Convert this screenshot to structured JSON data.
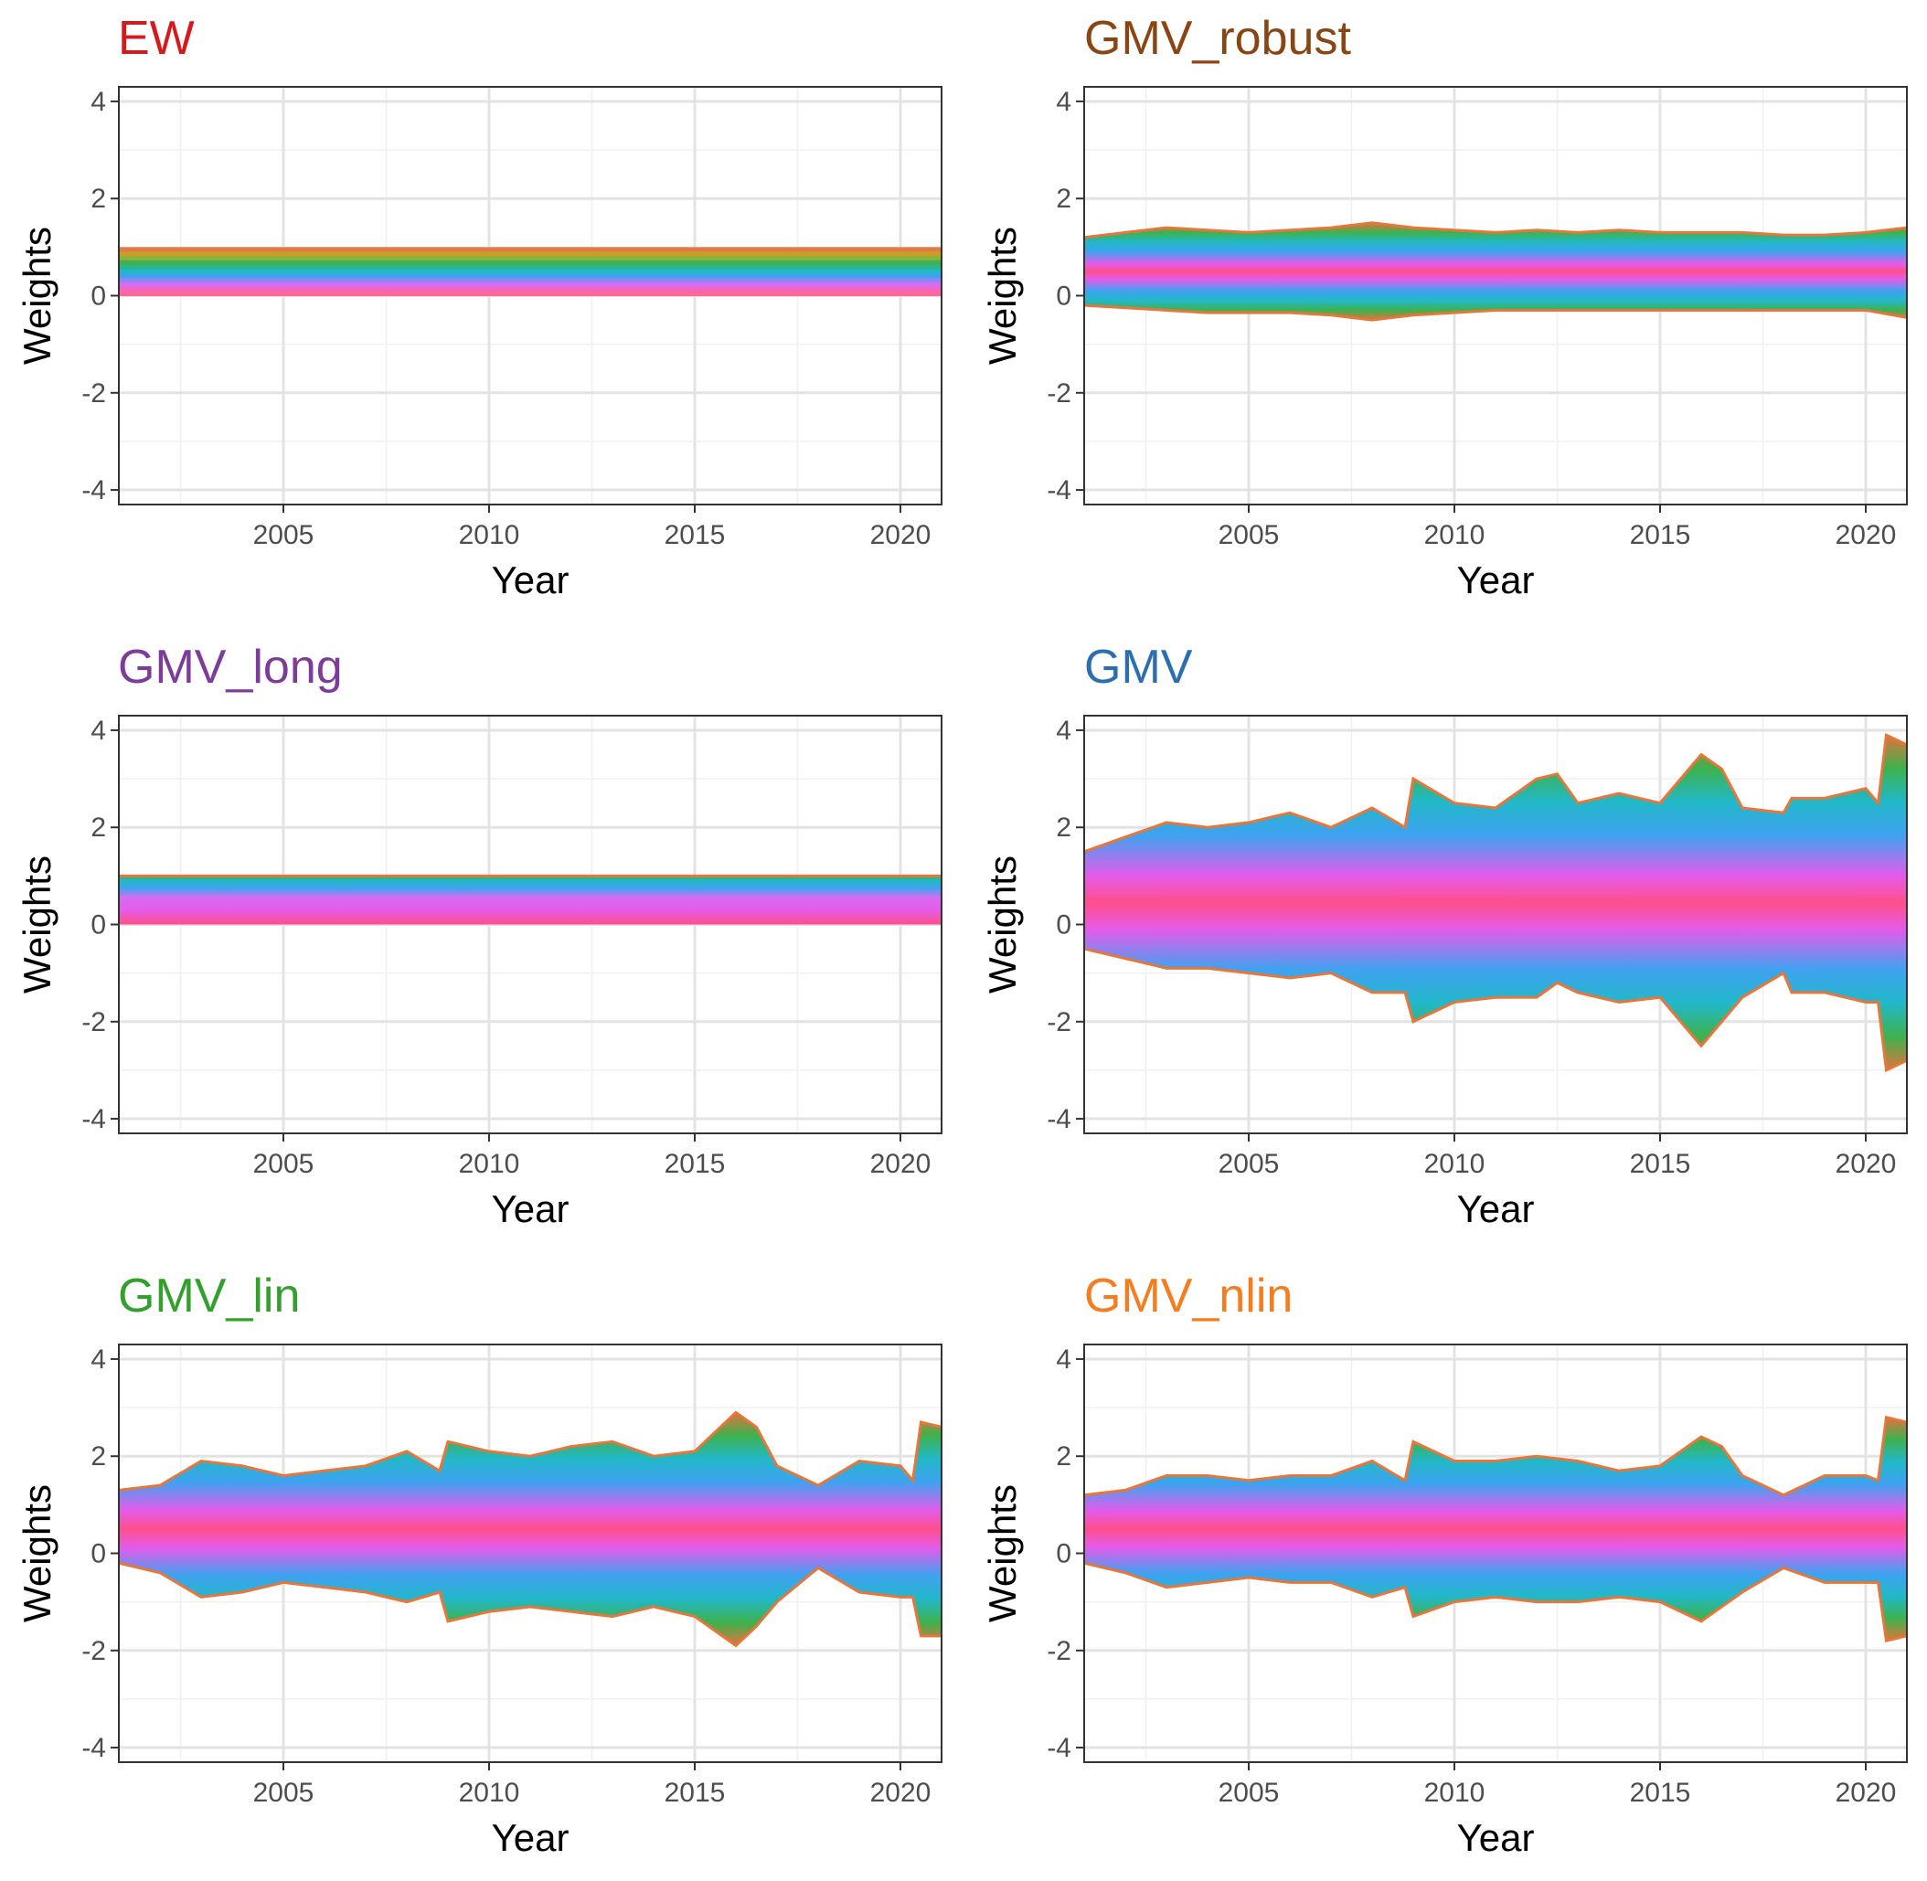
{
  "figure": {
    "background": "#ffffff",
    "panel_border": "#333333",
    "grid_major": "#e3e3e3",
    "grid_minor": "#f0f0f0"
  },
  "chart_data": [
    {
      "type": "area",
      "title": "EW",
      "title_color": "#D7191C",
      "xlabel": "Year",
      "ylabel": "Weights",
      "xlim": [
        2001,
        2021
      ],
      "ylim": [
        -4.3,
        4.3
      ],
      "xticks": [
        2005,
        2010,
        2015,
        2020
      ],
      "yticks": [
        -4,
        -2,
        0,
        2,
        4
      ],
      "grid": true,
      "stacked": true,
      "x": [
        2001,
        2003,
        2005,
        2007,
        2009,
        2011,
        2013,
        2015,
        2017,
        2019,
        2021
      ],
      "upper": [
        1.0,
        1.0,
        1.0,
        1.0,
        1.0,
        1.0,
        1.0,
        1.0,
        1.0,
        1.0,
        1.0
      ],
      "lower": [
        0.0,
        0.0,
        0.0,
        0.0,
        0.0,
        0.0,
        0.0,
        0.0,
        0.0,
        0.0,
        0.0
      ],
      "band_colors": [
        "#E07A4A",
        "#C9A024",
        "#8FB03A",
        "#3DB24E",
        "#2BB58A",
        "#22B8C9",
        "#3FA2F0",
        "#8E86F5",
        "#D66CEF",
        "#F065C6",
        "#FF6699"
      ]
    },
    {
      "type": "area",
      "title": "GMV_robust",
      "title_color": "#8B4513",
      "xlabel": "Year",
      "ylabel": "Weights",
      "xlim": [
        2001,
        2021
      ],
      "ylim": [
        -4.3,
        4.3
      ],
      "xticks": [
        2005,
        2010,
        2015,
        2020
      ],
      "yticks": [
        -4,
        -2,
        0,
        2,
        4
      ],
      "grid": true,
      "stacked": true,
      "x": [
        2001,
        2002,
        2003,
        2004,
        2005,
        2006,
        2007,
        2008,
        2009,
        2010,
        2011,
        2012,
        2013,
        2014,
        2015,
        2016,
        2017,
        2018,
        2019,
        2020,
        2021
      ],
      "upper": [
        1.2,
        1.3,
        1.4,
        1.35,
        1.3,
        1.35,
        1.4,
        1.5,
        1.4,
        1.35,
        1.3,
        1.35,
        1.3,
        1.35,
        1.3,
        1.3,
        1.3,
        1.25,
        1.25,
        1.3,
        1.4
      ],
      "lower": [
        -0.2,
        -0.25,
        -0.3,
        -0.35,
        -0.35,
        -0.35,
        -0.4,
        -0.5,
        -0.4,
        -0.35,
        -0.3,
        -0.3,
        -0.3,
        -0.3,
        -0.3,
        -0.3,
        -0.3,
        -0.3,
        -0.3,
        -0.3,
        -0.45
      ]
    },
    {
      "type": "area",
      "title": "GMV_long",
      "title_color": "#7D3C98",
      "xlabel": "Year",
      "ylabel": "Weights",
      "xlim": [
        2001,
        2021
      ],
      "ylim": [
        -4.3,
        4.3
      ],
      "xticks": [
        2005,
        2010,
        2015,
        2020
      ],
      "yticks": [
        -4,
        -2,
        0,
        2,
        4
      ],
      "grid": true,
      "stacked": true,
      "x": [
        2001,
        2002,
        2003,
        2004,
        2005,
        2006,
        2007,
        2008,
        2009,
        2010,
        2011,
        2012,
        2013,
        2014,
        2015,
        2016,
        2017,
        2018,
        2019,
        2020,
        2021
      ],
      "upper": [
        1.0,
        1.0,
        1.0,
        1.0,
        1.0,
        1.0,
        1.0,
        1.0,
        1.0,
        1.0,
        1.0,
        1.0,
        1.0,
        1.0,
        1.0,
        1.0,
        1.0,
        1.0,
        1.0,
        1.0,
        1.0
      ],
      "lower": [
        0.0,
        0.0,
        0.0,
        0.0,
        0.0,
        0.0,
        0.0,
        0.0,
        0.0,
        0.0,
        0.0,
        0.0,
        0.0,
        0.0,
        0.0,
        0.0,
        0.0,
        0.0,
        0.0,
        0.0,
        0.0
      ]
    },
    {
      "type": "area",
      "title": "GMV",
      "title_color": "#2C6FB0",
      "xlabel": "Year",
      "ylabel": "Weights",
      "xlim": [
        2001,
        2021
      ],
      "ylim": [
        -4.3,
        4.3
      ],
      "xticks": [
        2005,
        2010,
        2015,
        2020
      ],
      "yticks": [
        -4,
        -2,
        0,
        2,
        4
      ],
      "grid": true,
      "stacked": true,
      "x": [
        2001,
        2002,
        2003,
        2004,
        2005,
        2006,
        2007,
        2008,
        2008.8,
        2009,
        2010,
        2011,
        2012,
        2012.5,
        2013,
        2014,
        2015,
        2016,
        2016.5,
        2017,
        2018,
        2018.2,
        2019,
        2020,
        2020.3,
        2020.5,
        2021
      ],
      "upper": [
        1.5,
        1.8,
        2.1,
        2.0,
        2.1,
        2.3,
        2.0,
        2.4,
        2.0,
        3.0,
        2.5,
        2.4,
        3.0,
        3.1,
        2.5,
        2.7,
        2.5,
        3.5,
        3.2,
        2.4,
        2.3,
        2.6,
        2.6,
        2.8,
        2.5,
        3.9,
        3.7
      ],
      "lower": [
        -0.5,
        -0.7,
        -0.9,
        -0.9,
        -1.0,
        -1.1,
        -1.0,
        -1.4,
        -1.4,
        -2.0,
        -1.6,
        -1.5,
        -1.5,
        -1.2,
        -1.4,
        -1.6,
        -1.5,
        -2.5,
        -2.0,
        -1.5,
        -1.0,
        -1.4,
        -1.4,
        -1.6,
        -1.6,
        -3.0,
        -2.8
      ]
    },
    {
      "type": "area",
      "title": "GMV_lin",
      "title_color": "#33A02C",
      "xlabel": "Year",
      "ylabel": "Weights",
      "xlim": [
        2001,
        2021
      ],
      "ylim": [
        -4.3,
        4.3
      ],
      "xticks": [
        2005,
        2010,
        2015,
        2020
      ],
      "yticks": [
        -4,
        -2,
        0,
        2,
        4
      ],
      "grid": true,
      "stacked": true,
      "x": [
        2001,
        2002,
        2003,
        2004,
        2005,
        2006,
        2007,
        2008,
        2008.8,
        2009,
        2010,
        2011,
        2012,
        2013,
        2014,
        2015,
        2016,
        2016.5,
        2017,
        2018,
        2019,
        2020,
        2020.3,
        2020.5,
        2021
      ],
      "upper": [
        1.3,
        1.4,
        1.9,
        1.8,
        1.6,
        1.7,
        1.8,
        2.1,
        1.7,
        2.3,
        2.1,
        2.0,
        2.2,
        2.3,
        2.0,
        2.1,
        2.9,
        2.6,
        1.8,
        1.4,
        1.9,
        1.8,
        1.5,
        2.7,
        2.6
      ],
      "lower": [
        -0.2,
        -0.4,
        -0.9,
        -0.8,
        -0.6,
        -0.7,
        -0.8,
        -1.0,
        -0.8,
        -1.4,
        -1.2,
        -1.1,
        -1.2,
        -1.3,
        -1.1,
        -1.3,
        -1.9,
        -1.5,
        -1.0,
        -0.3,
        -0.8,
        -0.9,
        -0.9,
        -1.7,
        -1.7
      ]
    },
    {
      "type": "area",
      "title": "GMV_nlin",
      "title_color": "#F57C1F",
      "xlabel": "Year",
      "ylabel": "Weights",
      "xlim": [
        2001,
        2021
      ],
      "ylim": [
        -4.3,
        4.3
      ],
      "xticks": [
        2005,
        2010,
        2015,
        2020
      ],
      "yticks": [
        -4,
        -2,
        0,
        2,
        4
      ],
      "grid": true,
      "stacked": true,
      "x": [
        2001,
        2002,
        2003,
        2004,
        2005,
        2006,
        2007,
        2008,
        2008.8,
        2009,
        2010,
        2011,
        2012,
        2013,
        2014,
        2015,
        2016,
        2016.5,
        2017,
        2018,
        2019,
        2020,
        2020.3,
        2020.5,
        2021
      ],
      "upper": [
        1.2,
        1.3,
        1.6,
        1.6,
        1.5,
        1.6,
        1.6,
        1.9,
        1.5,
        2.3,
        1.9,
        1.9,
        2.0,
        1.9,
        1.7,
        1.8,
        2.4,
        2.2,
        1.6,
        1.2,
        1.6,
        1.6,
        1.5,
        2.8,
        2.7
      ],
      "lower": [
        -0.2,
        -0.4,
        -0.7,
        -0.6,
        -0.5,
        -0.6,
        -0.6,
        -0.9,
        -0.7,
        -1.3,
        -1.0,
        -0.9,
        -1.0,
        -1.0,
        -0.9,
        -1.0,
        -1.4,
        -1.1,
        -0.8,
        -0.3,
        -0.6,
        -0.6,
        -0.6,
        -1.8,
        -1.7
      ]
    }
  ]
}
